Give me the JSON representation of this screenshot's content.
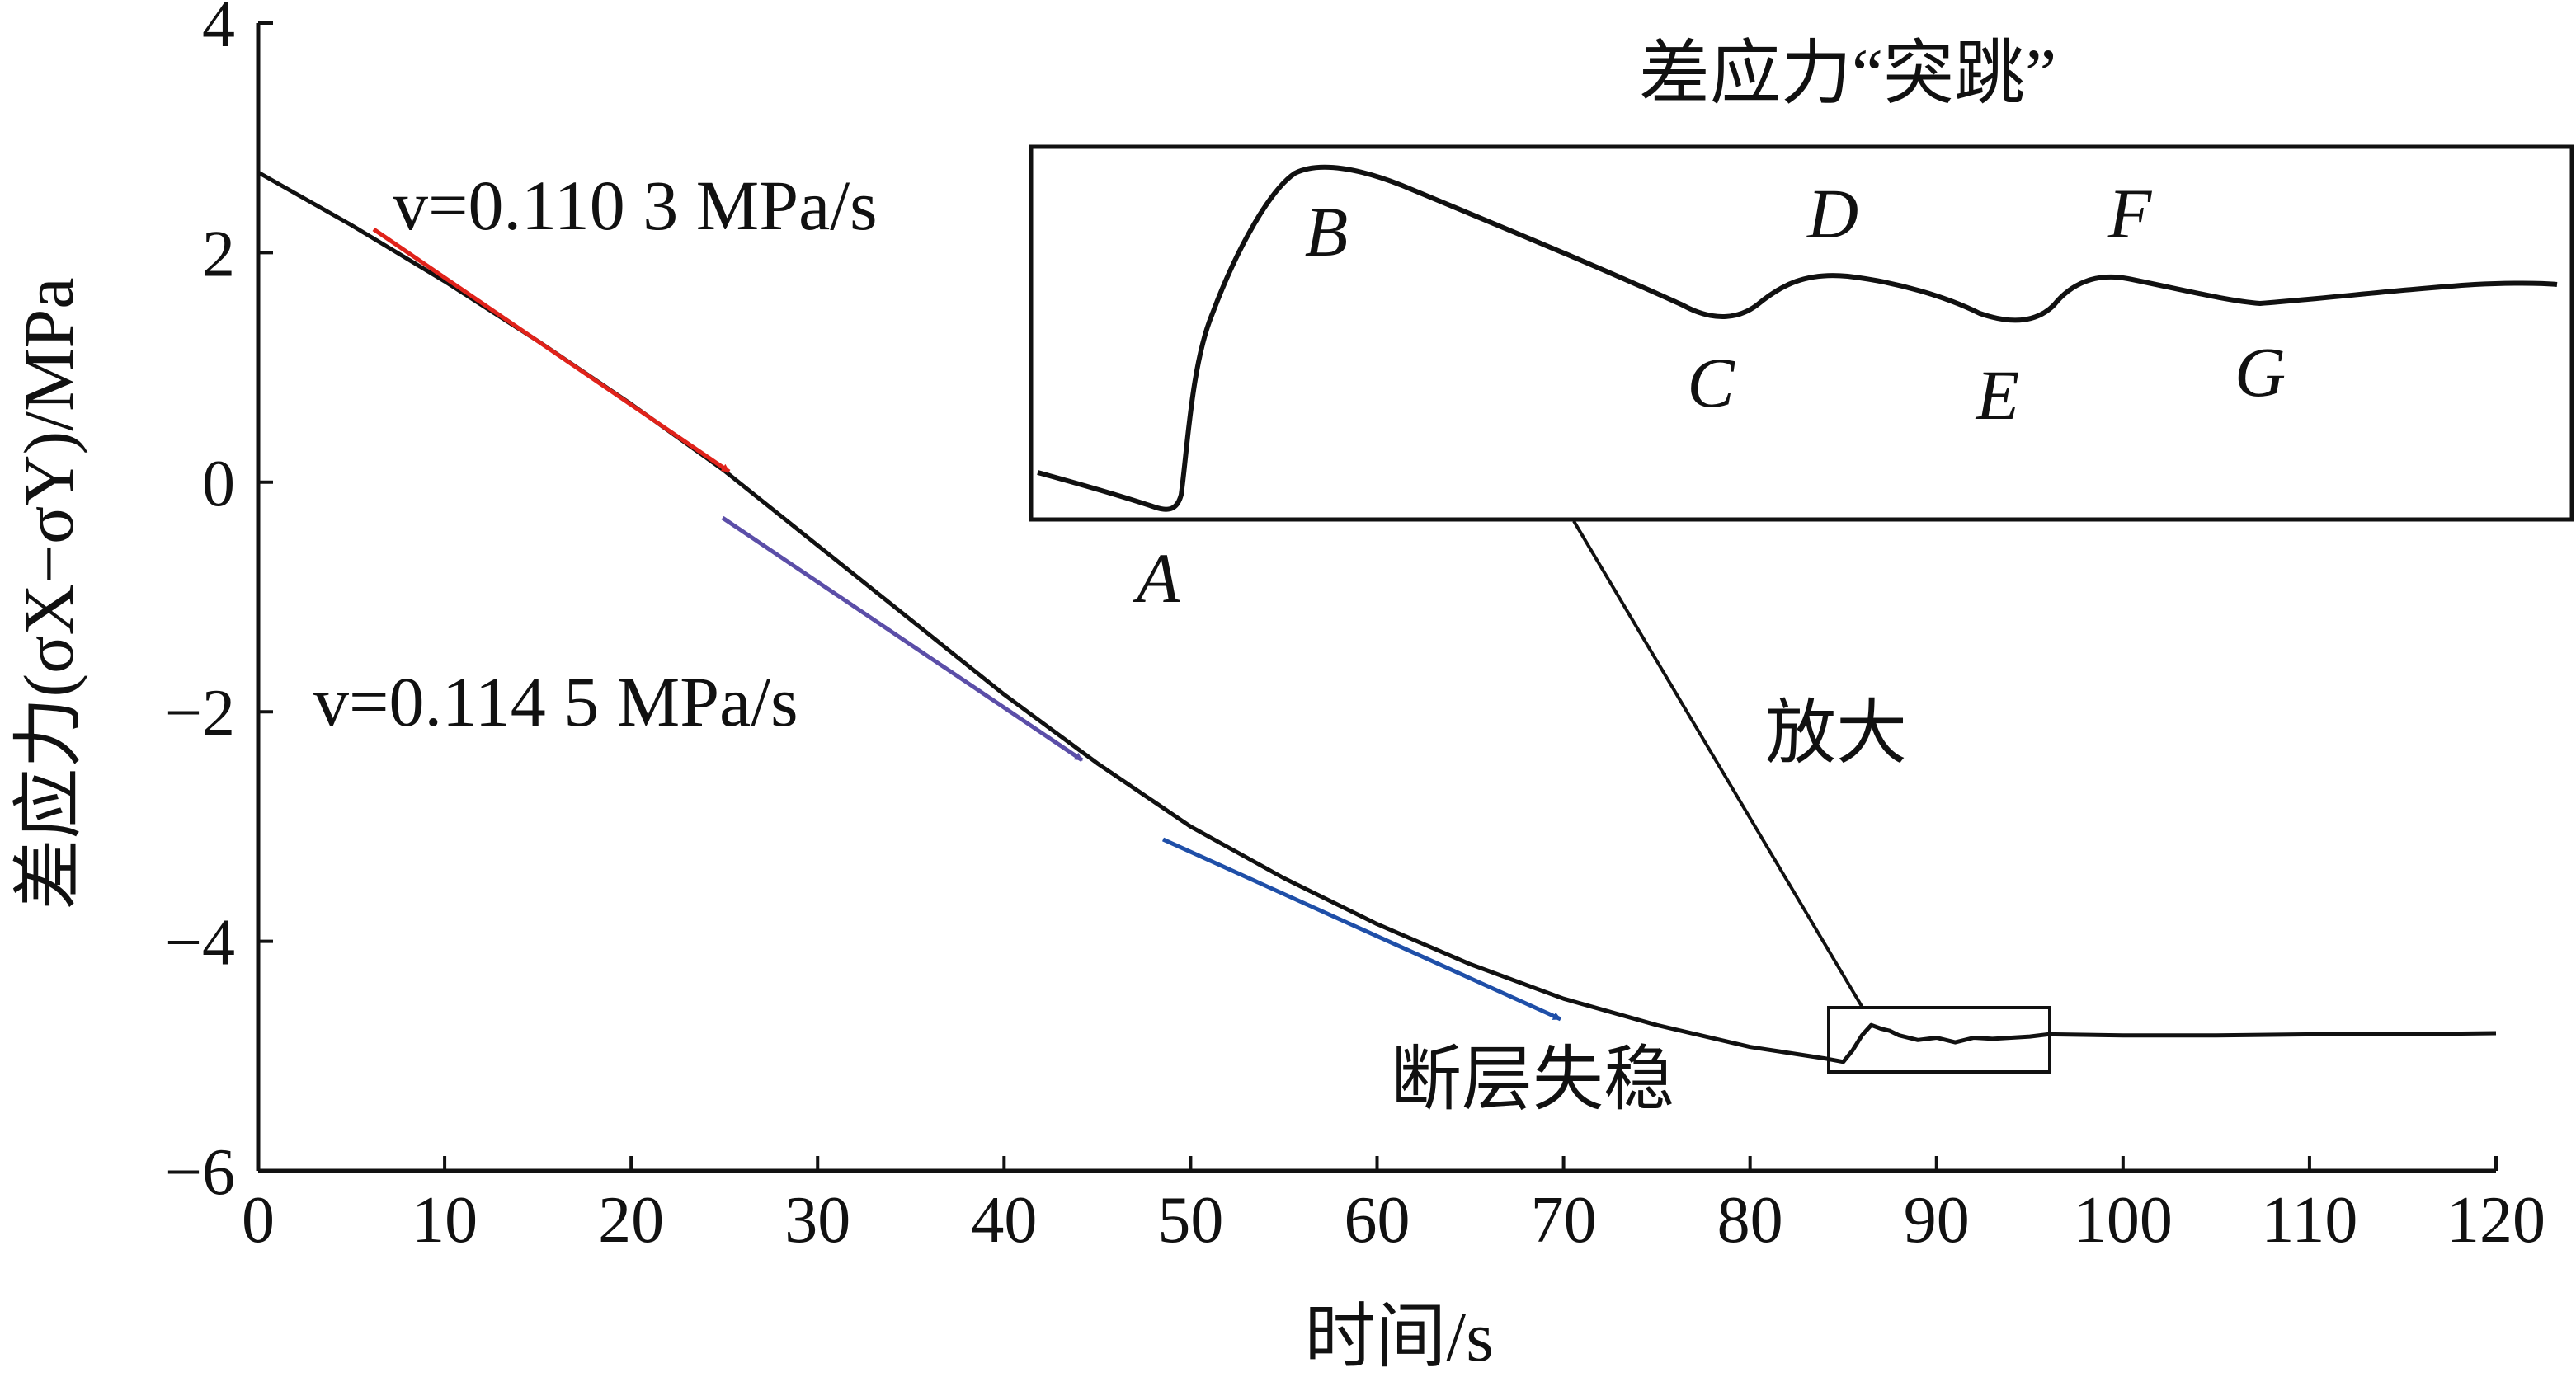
{
  "chart_data": {
    "type": "line",
    "xlabel": "时间/s",
    "ylabel": "差应力(σX−σY)/MPa",
    "xlim": [
      0,
      120
    ],
    "ylim": [
      -6,
      4
    ],
    "x_ticks": [
      "0",
      "10",
      "20",
      "30",
      "40",
      "50",
      "60",
      "70",
      "80",
      "90",
      "100",
      "110",
      "120"
    ],
    "y_ticks": [
      "4",
      "2",
      "0",
      "−2",
      "−4",
      "−6"
    ],
    "grid": false,
    "series": [
      {
        "color": "#111111",
        "x": [
          0,
          5,
          10,
          15,
          20,
          25,
          30,
          35,
          40,
          45,
          50,
          55,
          60,
          65,
          70,
          75,
          80,
          84,
          85.0,
          85.5,
          86.0,
          86.5,
          87.0,
          87.5,
          88.0,
          89.0,
          90.0,
          91.0,
          92.0,
          93.0,
          94.0,
          95.0,
          96.0,
          100,
          105,
          110,
          115,
          120
        ],
        "values": [
          2.7,
          2.24,
          1.75,
          1.23,
          0.68,
          0.1,
          -0.55,
          -1.2,
          -1.85,
          -2.45,
          -3.0,
          -3.45,
          -3.85,
          -4.2,
          -4.5,
          -4.73,
          -4.92,
          -5.02,
          -5.05,
          -4.95,
          -4.82,
          -4.73,
          -4.76,
          -4.78,
          -4.82,
          -4.86,
          -4.84,
          -4.88,
          -4.84,
          -4.85,
          -4.84,
          -4.83,
          -4.81,
          -4.82,
          -4.82,
          -4.81,
          -4.81,
          -4.8
        ]
      }
    ],
    "annotations": {
      "rate1": "v=0.110 3 MPa/s",
      "rate2": "v=0.114 5 MPa/s",
      "instability": "断层失稳",
      "zoom": "放大",
      "inset_title": "差应力“突跳”",
      "points": [
        "A",
        "B",
        "C",
        "D",
        "E",
        "F",
        "G"
      ]
    },
    "colors": {
      "curve": "#111111",
      "arrow_red": "#e0221a",
      "arrow_purple": "#5b4ea8",
      "arrow_blue": "#1f4fa8"
    }
  }
}
